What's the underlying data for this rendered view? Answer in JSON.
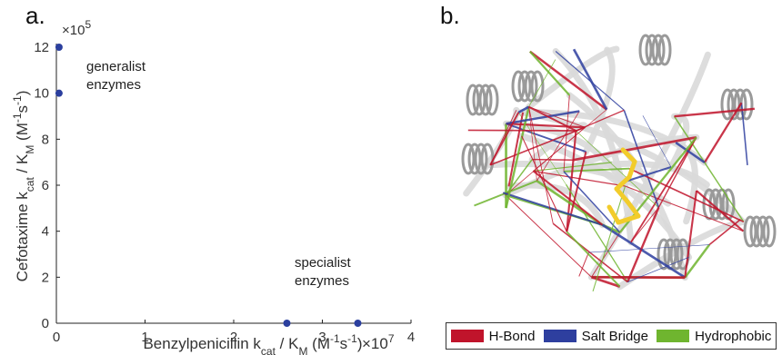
{
  "panels": {
    "a_label": "a.",
    "b_label": "b."
  },
  "chart_data": {
    "type": "scatter",
    "xlabel": "Benzylpenicillin k_cat / K_M (M^-1 s^-1)",
    "ylabel": "Cefotaxime k_cat / K_M (M^-1 s^-1)",
    "x_multiplier": "×10^7",
    "y_multiplier": "×10^5",
    "xlim": [
      0,
      4
    ],
    "ylim": [
      0,
      12
    ],
    "x_ticks": [
      "0",
      "1",
      "2",
      "3",
      "4"
    ],
    "y_ticks": [
      "0",
      "2",
      "4",
      "6",
      "8",
      "10",
      "12"
    ],
    "point_color": "#2b3f9e",
    "series": [
      {
        "x": [
          0.03,
          0.03,
          2.6,
          3.4
        ],
        "y": [
          12,
          10,
          0,
          0
        ]
      }
    ],
    "annotations": [
      {
        "text_lines": [
          "generalist",
          "enzymes"
        ]
      },
      {
        "text_lines": [
          "specialist",
          "enzymes"
        ]
      }
    ]
  },
  "legend": {
    "items": [
      {
        "label": "H-Bond",
        "color": "#c0142b"
      },
      {
        "label": "Salt Bridge",
        "color": "#2e3f9f"
      },
      {
        "label": "Hydrophobic",
        "color": "#6fb52f"
      }
    ]
  },
  "protein": {
    "ligand_color": "#f2cc2b",
    "ribbon_color": "#d9d9d9"
  }
}
